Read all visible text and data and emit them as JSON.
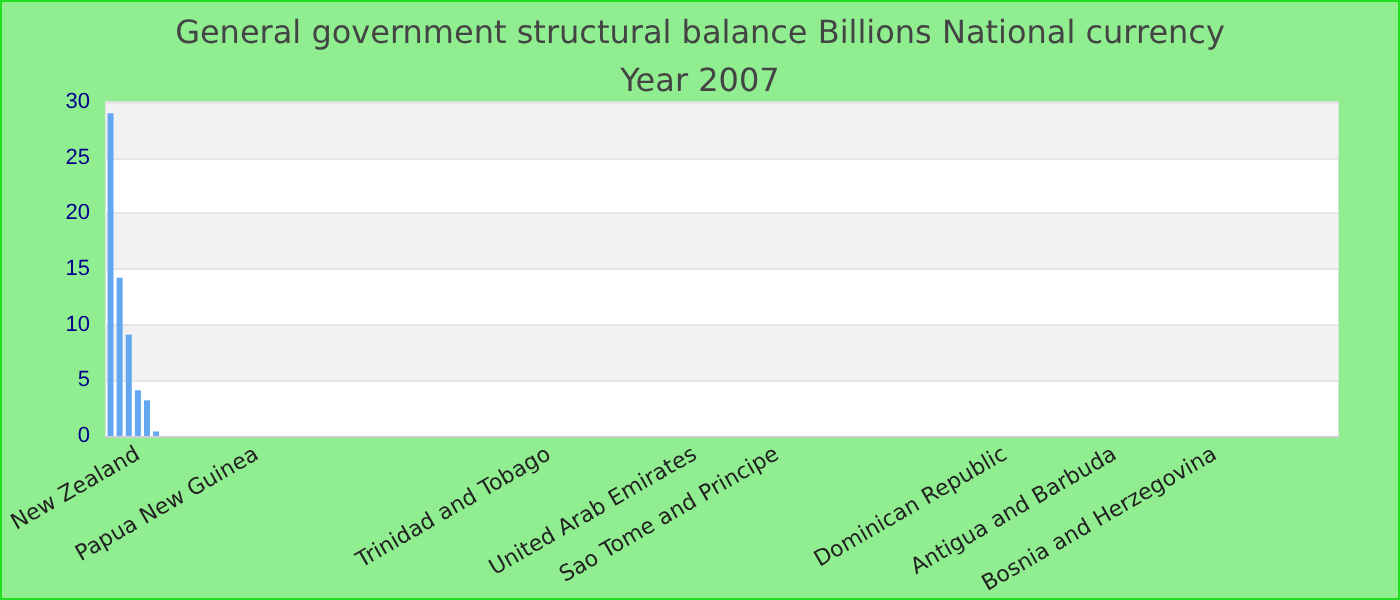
{
  "chart_data": {
    "type": "bar",
    "title": "General government structural balance Billions National currency",
    "subtitle": "Year 2007",
    "categories": [
      null,
      null,
      null,
      "New Zealand",
      null,
      null,
      null,
      null,
      null,
      null,
      null,
      null,
      null,
      null,
      null,
      null,
      "Papua New Guinea",
      null,
      null,
      null,
      null,
      null,
      null,
      null,
      null,
      null,
      null,
      null,
      null,
      null,
      null,
      null,
      null,
      null,
      null,
      null,
      null,
      null,
      null,
      null,
      null,
      null,
      null,
      null,
      null,
      null,
      null,
      null,
      "Trinidad and Tobago",
      null,
      null,
      null,
      null,
      null,
      null,
      null,
      null,
      null,
      null,
      null,
      null,
      null,
      null,
      null,
      "United Arab Emirates",
      null,
      null,
      null,
      null,
      null,
      null,
      null,
      null,
      "Sao Tome and Principe",
      null,
      null,
      null,
      null,
      null,
      null,
      null,
      null,
      null,
      null,
      null,
      null,
      null,
      null,
      null,
      null,
      null,
      null,
      null,
      null,
      null,
      null,
      null,
      null,
      "Dominican Republic",
      null,
      null,
      null,
      null,
      null,
      null,
      null,
      null,
      null,
      null,
      null,
      "Antigua and Barbuda",
      null,
      null,
      null,
      null,
      null,
      null,
      null,
      null,
      null,
      null,
      "Bosnia and Herzegovina",
      null,
      null,
      null,
      null,
      null,
      null,
      null,
      null,
      null,
      null,
      null,
      null,
      null
    ],
    "values": [
      29,
      14.2,
      9.1,
      4.1,
      3.2,
      0.4,
      null,
      null,
      null,
      null,
      null,
      null,
      null,
      null,
      null,
      null,
      null,
      null,
      null,
      null,
      null,
      null,
      null,
      null,
      null,
      null,
      null,
      null,
      null,
      null,
      null,
      null,
      null,
      null,
      null,
      null,
      null,
      null,
      null,
      null,
      null,
      null,
      null,
      null,
      null,
      null,
      null,
      null,
      null,
      null,
      null,
      null,
      null,
      null,
      null,
      null,
      null,
      null,
      null,
      null,
      null,
      null,
      null,
      null,
      null,
      null,
      null,
      null,
      null,
      null,
      null,
      null,
      null,
      null,
      null,
      null,
      null,
      null,
      null,
      null,
      null,
      null,
      null,
      null,
      null,
      null,
      null,
      null,
      null,
      null,
      null,
      null,
      null,
      null,
      null,
      null,
      null,
      null,
      null,
      null,
      null,
      null,
      null,
      null,
      null,
      null,
      null,
      null,
      null,
      null,
      null,
      null,
      null,
      null,
      null,
      null,
      null,
      null,
      null,
      null,
      null,
      null,
      null,
      null,
      null,
      null,
      null,
      null,
      null,
      null,
      null,
      null,
      null,
      null,
      null
    ],
    "color": "#63a7f0",
    "ylim": [
      0,
      30
    ],
    "yticks": [
      0,
      5,
      10,
      15,
      20,
      25,
      30
    ],
    "grid": "y"
  }
}
